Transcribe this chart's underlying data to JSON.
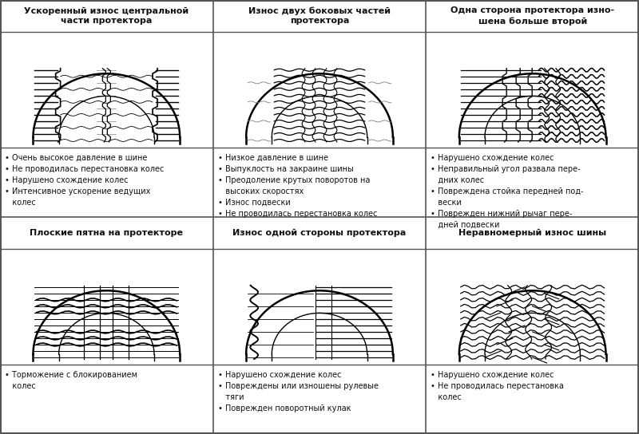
{
  "bg_color": "#ffffff",
  "border_color": "#555555",
  "text_color": "#111111",
  "grid_color": "#555555",
  "headers_row1": [
    "Ускоренный износ центральной\nчасти протектора",
    "Износ двух боковых частей\nпротектора",
    "Одна сторона протектора изно-\nшена больше второй"
  ],
  "headers_row2": [
    "Плоские пятна на протекторе",
    "Износ одной стороны протектора",
    "Неравномерный износ шины"
  ],
  "bullets_row1": [
    "• Очень высокое давление в шине\n• Не проводилась перестановка колес\n• Нарушено схождение колес\n• Интенсивное ускорение ведущих\n   колес",
    "• Низкое давление в шине\n• Выпуклость на закраине шины\n• Преодоление крутых поворотов на\n   высоких скоростях\n• Износ подвески\n• Не проводилась перестановка колес",
    "• Нарушено схождение колес\n• Неправильный угол развала пере-\n   дних колес\n• Повреждена стойка передней под-\n   вески\n• Поврежден нижний рычаг пере-\n   дней подвески"
  ],
  "bullets_row2": [
    "• Торможение с блокированием\n   колес",
    "• Нарушено схождение колес\n• Повреждены или изношены рулевые\n   тяги\n• Поврежден поворотный кулак",
    "• Нарушено схождение колес\n• Не проводилась перестановка\n   колес"
  ],
  "figsize": [
    8.0,
    5.44
  ],
  "dpi": 100
}
